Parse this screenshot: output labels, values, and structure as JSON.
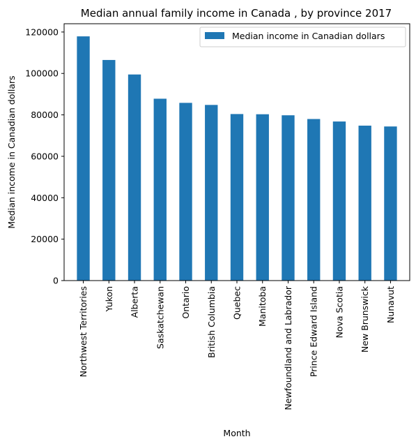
{
  "chart_data": {
    "type": "bar",
    "title": "Median annual family income in Canada , by province 2017",
    "xlabel": "Month",
    "ylabel": "Median income in Canadian dollars",
    "ylim": [
      0,
      124000
    ],
    "yticks": [
      0,
      20000,
      40000,
      60000,
      80000,
      100000,
      120000
    ],
    "grid": false,
    "legend_position": "top-right",
    "color": "#1f77b4",
    "categories": [
      "Northwest Territories",
      "Yukon",
      "Alberta",
      "Saskatchewan",
      "Ontario",
      "British Columbia",
      "Quebec",
      "Manitoba",
      "Newfoundland and Labrador",
      "Prince Edward Island",
      "Nova Scotia",
      "New Brunswick",
      "Nunavut"
    ],
    "series": [
      {
        "name": "Median income in Canadian dollars",
        "values": [
          117900,
          106500,
          99500,
          87800,
          85800,
          84800,
          80400,
          80300,
          79800,
          78000,
          76800,
          74800,
          74400
        ]
      }
    ]
  }
}
